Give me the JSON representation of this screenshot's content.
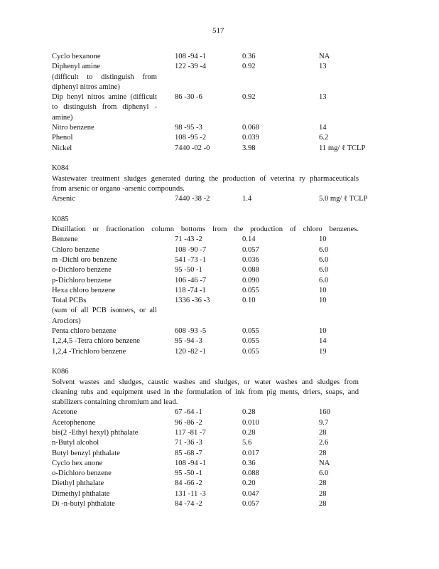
{
  "page_number": "517",
  "sections": [
    {
      "code": "",
      "description": [],
      "rows": [
        {
          "name": [
            "Cyclo  hexanone"
          ],
          "cas": "108 -94 -1",
          "v1": "0.36",
          "v2": "NA"
        },
        {
          "name": [
            "Diphenyl  amine",
            "(difficult   to distinguish   from",
            "diphenyl  nitros amine)"
          ],
          "cas": "122 -39 -4",
          "v1": "0.92",
          "v2": "13"
        },
        {
          "name": [
            "Dip henyl nitros amine  (difficult",
            "to distinguish   from   diphenyl  -",
            "amine)"
          ],
          "cas": "86 -30 -6",
          "v1": "0.92",
          "v2": "13"
        },
        {
          "name": [
            "Nitro  benzene"
          ],
          "cas": "98 -95 -3",
          "v1": "0.068",
          "v2": "14"
        },
        {
          "name": [
            "Phenol"
          ],
          "cas": "108 -95 -2",
          "v1": "0.039",
          "v2": "6.2"
        },
        {
          "name": [
            "Nickel"
          ],
          "cas": "7440  -02 -0",
          "v1": "3.98",
          "v2": "11  mg/ ℓ TCLP"
        }
      ]
    },
    {
      "code": "K084",
      "description": [
        "Wastewater   treatment   sludges  generated   during   the  production   of  veterina  ry pharmaceuticals",
        "from  arsenic   or organo  -arsenic   compounds."
      ],
      "rows": [
        {
          "name": [
            "Arsenic"
          ],
          "cas": "7440  -38 -2",
          "v1": "1.4",
          "v2": "5.0  mg/ ℓ TCLP"
        }
      ]
    },
    {
      "code": "K085",
      "description": [
        "Distillation   or fractionation    column   bottoms   from   the  production    of  chloro  benzenes."
      ],
      "rows": [
        {
          "name": [
            "Benzene"
          ],
          "cas": "71 -43 -2",
          "v1": "0.14",
          "v2": "10"
        },
        {
          "name": [
            "Chloro  benzene"
          ],
          "cas": "108 -90 -7",
          "v1": "0.057",
          "v2": "6.0"
        },
        {
          "name": [
            "m -Dichl  oro benzene"
          ],
          "cas": "541 -73 -1",
          "v1": "0.036",
          "v2": "6.0"
        },
        {
          "name": [
            "o-Dichloro  benzene"
          ],
          "cas": "95 -50 -1",
          "v1": "0.088",
          "v2": "6.0"
        },
        {
          "name": [
            "p-Dichloro  benzene"
          ],
          "cas": "106 -46 -7",
          "v1": "0.090",
          "v2": "6.0"
        },
        {
          "name": [
            "Hexa  chloro  benzene"
          ],
          "cas": "118 -74 -1",
          "v1": "0.055",
          "v2": "10"
        },
        {
          "name": [
            "Total  PCBs",
            "(sum   of  all PCB   isomers,   or  all",
            "Aroclors)"
          ],
          "cas": "1336  -36 -3",
          "v1": "0.10",
          "v2": "10"
        },
        {
          "name": [
            "Penta  chloro  benzene"
          ],
          "cas": "608 -93 -5",
          "v1": "0.055",
          "v2": "10"
        },
        {
          "name": [
            "1,2,4,5  -Tetra  chloro  benzene"
          ],
          "cas": "95 -94 -3",
          "v1": "0.055",
          "v2": "14"
        },
        {
          "name": [
            "1,2,4  -Trichloro   benzene"
          ],
          "cas": "120 -82 -1",
          "v1": "0.055",
          "v2": "19"
        }
      ]
    },
    {
      "code": "K086",
      "description": [
        "Solvent   wastes   and  sludges,  caustic   washes   and  sludges,   or water   washes   and  sludges   from",
        "cleaning   tubs  and  equipment    used  in  the formulation    of  ink from   pig ments,  driers,  soaps,  and",
        "stabilizers    containing    chromium    and  lead."
      ],
      "rows": [
        {
          "name": [
            "Acetone"
          ],
          "cas": "67 -64 -1",
          "v1": "0.28",
          "v2": "160"
        },
        {
          "name": [
            "Acetophenone"
          ],
          "cas": "96 -86 -2",
          "v1": "0.010",
          "v2": "9.7"
        },
        {
          "name": [
            "bis(2  -Ethyl hexyl)   phthalate"
          ],
          "cas": "117 -81 -7",
          "v1": "0.28",
          "v2": "28"
        },
        {
          "name": [
            "n-Butyl  alcohol"
          ],
          "cas": "71 -36 -3",
          "v1": "5.6",
          "v2": "2.6"
        },
        {
          "name": [
            "Butyl benzyl   phthalate"
          ],
          "cas": "85 -68 -7",
          "v1": "0.017",
          "v2": "28"
        },
        {
          "name": [
            "Cyclo  hex anone"
          ],
          "cas": "108 -94 -1",
          "v1": "0.36",
          "v2": "NA"
        },
        {
          "name": [
            "o-Dichloro   benzene"
          ],
          "cas": "95 -50 -1",
          "v1": "0.088",
          "v2": "6.0"
        },
        {
          "name": [
            "Diethyl   phthalate"
          ],
          "cas": "84 -66 -2",
          "v1": "0.20",
          "v2": "28"
        },
        {
          "name": [
            "Dimethyl    phthalate"
          ],
          "cas": "131 -11 -3",
          "v1": "0.047",
          "v2": "28"
        },
        {
          "name": [
            "Di -n-butyl  phthalate"
          ],
          "cas": "84 -74 -2",
          "v1": "0.057",
          "v2": "28"
        }
      ]
    }
  ]
}
